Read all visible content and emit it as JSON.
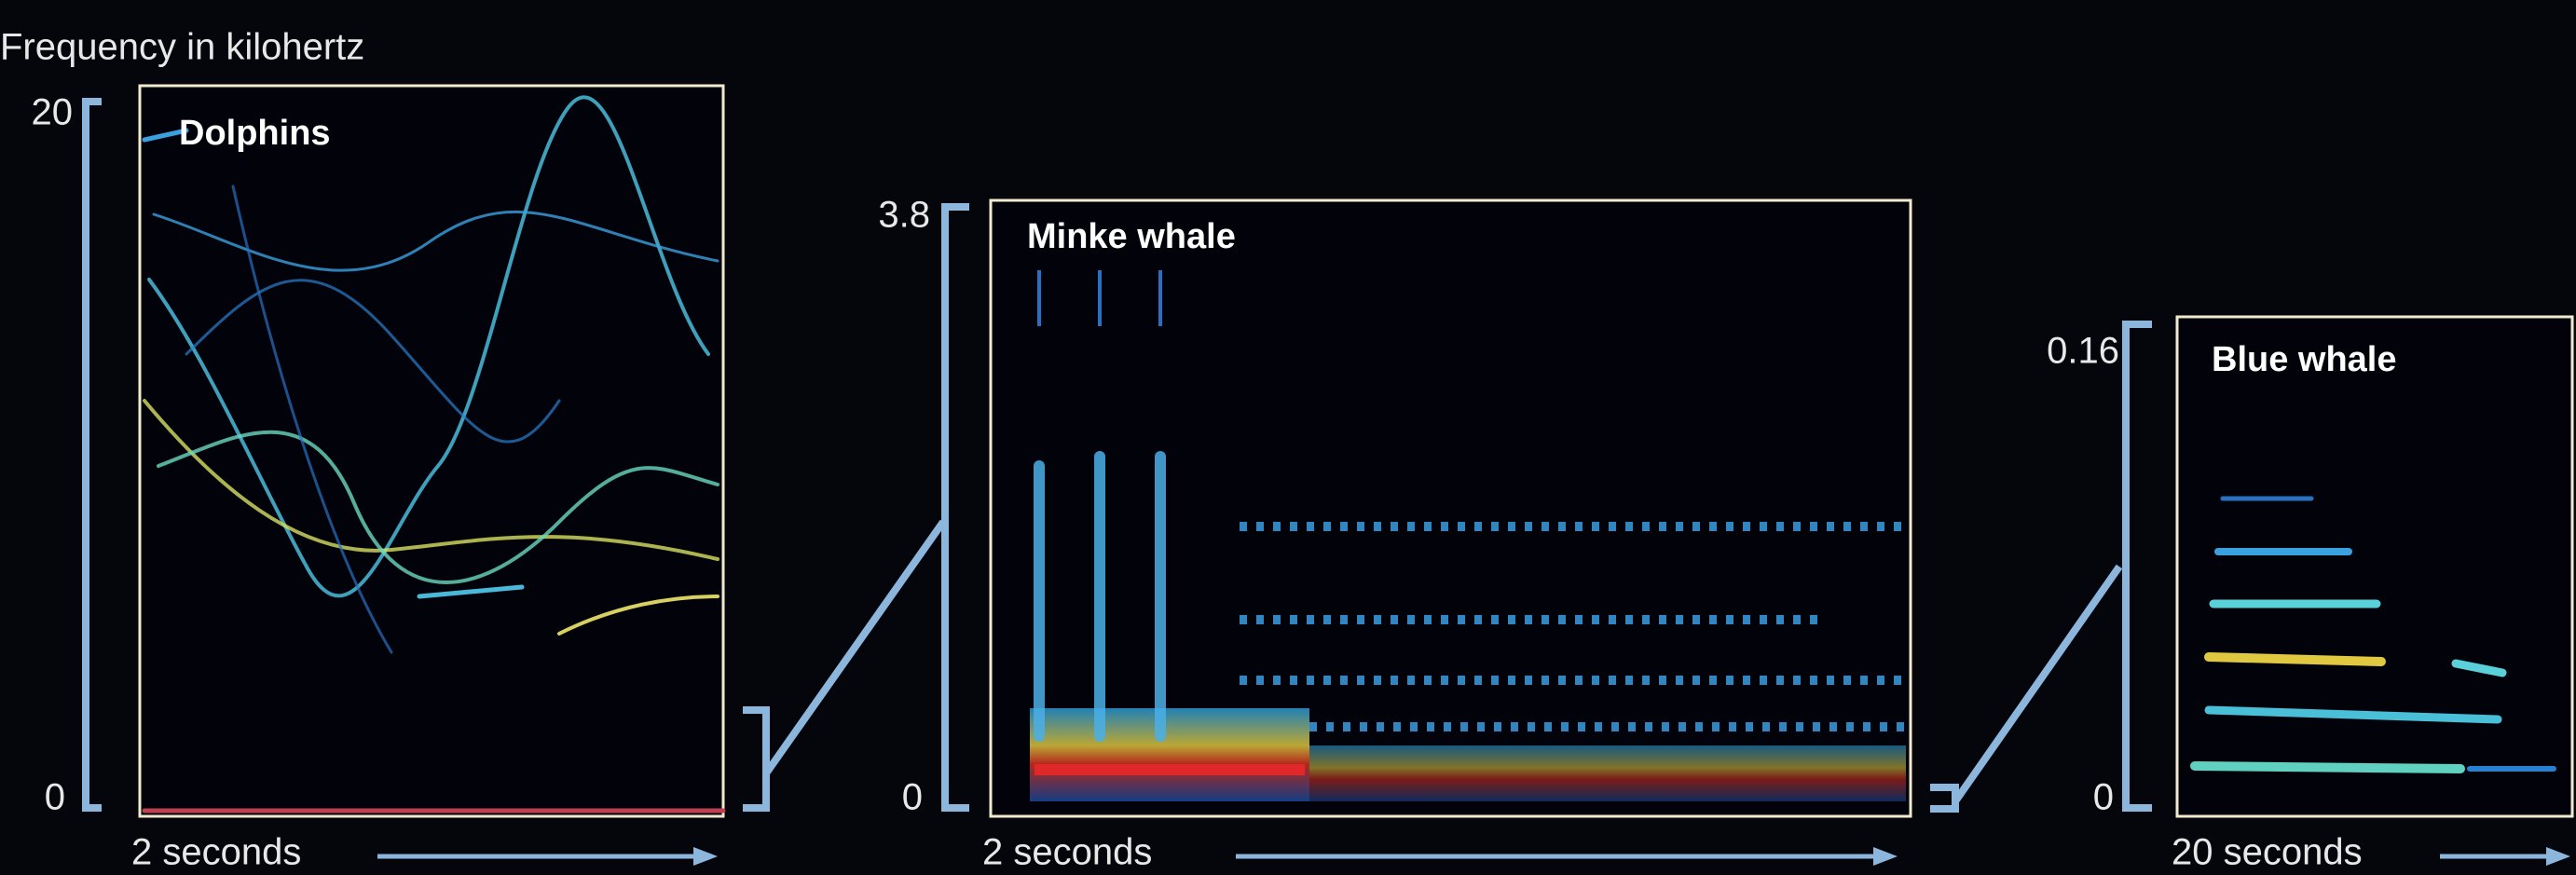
{
  "header": {
    "title": "Frequency in kilohertz"
  },
  "panels": [
    {
      "label": "Dolphins",
      "ymax": "20",
      "ymin": "0",
      "xlabel": "2 seconds"
    },
    {
      "label": "Minke whale",
      "ymax": "3.8",
      "ymin": "0",
      "xlabel": "2 seconds"
    },
    {
      "label": "Blue whale",
      "ymax": "0.16",
      "ymin": "0",
      "xlabel": "20 seconds"
    }
  ]
}
